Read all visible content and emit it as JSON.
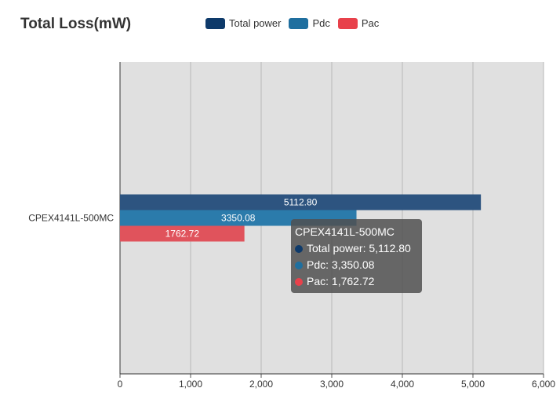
{
  "chart_data": {
    "type": "bar",
    "orientation": "horizontal",
    "title": "Total Loss(mW)",
    "categories": [
      "CPEX4141L-500MC"
    ],
    "series": [
      {
        "name": "Total power",
        "values": [
          5112.8
        ],
        "label": "5112.80",
        "color": "#2d5480"
      },
      {
        "name": "Pdc",
        "values": [
          3350.08
        ],
        "label": "3350.08",
        "color": "#2b7bab"
      },
      {
        "name": "Pac",
        "values": [
          1762.72
        ],
        "label": "1762.72",
        "color": "#e0535c"
      }
    ],
    "xlim": [
      0,
      6000
    ],
    "xticks": [
      0,
      1000,
      2000,
      3000,
      4000,
      5000,
      6000
    ],
    "xtick_labels": [
      "0",
      "1,000",
      "2,000",
      "3,000",
      "4,000",
      "5,000",
      "6,000"
    ],
    "grid": true,
    "legend_position": "top",
    "legend_colors": [
      "#0e3a6a",
      "#1f6f9f",
      "#e8414b"
    ],
    "plot_background": "#e0e0e0"
  },
  "tooltip": {
    "title": "CPEX4141L-500MC",
    "rows": [
      {
        "text": "Total power: 5,112.80",
        "color": "#0e3a6a"
      },
      {
        "text": "Pdc: 3,350.08",
        "color": "#1f6f9f"
      },
      {
        "text": "Pac: 1,762.72",
        "color": "#e8414b"
      }
    ]
  }
}
